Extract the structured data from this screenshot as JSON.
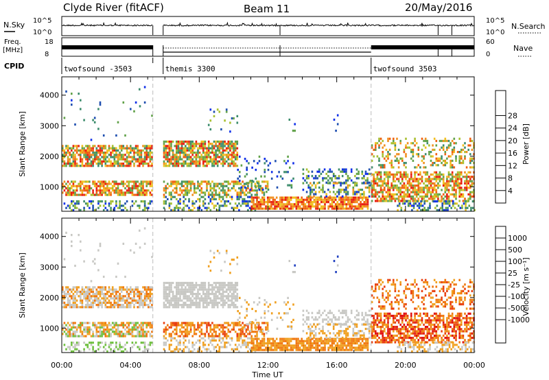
{
  "header": {
    "station": "Clyde River (fitACF)",
    "beam": "Beam 11",
    "date": "20/May/2016"
  },
  "top_panels": {
    "nsky_label": "N.Sky",
    "nsky_ticks": [
      "10^5",
      "10^0"
    ],
    "nsearch_label": "N.Search",
    "nsearch_ticks": [
      "10^5",
      "10^0"
    ],
    "freq_label_1": "Freq.",
    "freq_label_2": "[MHz]",
    "freq_ticks": [
      "18",
      "8"
    ],
    "nave_label": "Nave",
    "nave_ticks": [
      "60",
      "0"
    ],
    "cpid_label": "CPID",
    "cpid_segments": [
      {
        "label": "twofsound -3503",
        "start_h": 0.0,
        "end_h": 5.3
      },
      {
        "label": "themis 3300",
        "start_h": 5.9,
        "end_h": 18.0
      },
      {
        "label": "twofsound 3503",
        "start_h": 18.0,
        "end_h": 24.0
      }
    ]
  },
  "chart_data": [
    {
      "type": "heatmap",
      "title": "",
      "ylabel": "Slant Range [km]",
      "xlim_hours": [
        0,
        24
      ],
      "ylim": [
        200,
        4600
      ],
      "x_ticks": [
        "00:00",
        "04:00",
        "08:00",
        "12:00",
        "16:00",
        "20:00",
        "00:00"
      ],
      "y_ticks": [
        "1000",
        "2000",
        "3000",
        "4000"
      ],
      "colorbar": {
        "label": "Power [dB]",
        "ticks": [
          "4",
          "8",
          "12",
          "16",
          "20",
          "24",
          "28"
        ],
        "colors": [
          "#1030e8",
          "#2050b0",
          "#3c8c6c",
          "#62a24a",
          "#a8c030",
          "#f0c020",
          "#f09020",
          "#f06010",
          "#e82010"
        ]
      }
    },
    {
      "type": "heatmap",
      "title": "",
      "ylabel": "Slant Range [km]",
      "xlabel": "Time UT",
      "xlim_hours": [
        0,
        24
      ],
      "ylim": [
        200,
        4600
      ],
      "x_ticks": [
        "00:00",
        "04:00",
        "08:00",
        "12:00",
        "16:00",
        "20:00",
        "00:00"
      ],
      "y_ticks": [
        "1000",
        "2000",
        "3000",
        "4000"
      ],
      "colorbar": {
        "label": "Velocity [m s⁻¹]",
        "ticks": [
          "1000",
          "500",
          "100",
          "25",
          "-25",
          "-100",
          "-500",
          "-1000"
        ],
        "colors": [
          "#2040c0",
          "#3c6cc0",
          "#3c9050",
          "#70c040",
          "#c8c8c4",
          "#c8c8c4",
          "#f0a020",
          "#f07810",
          "#e84010",
          "#e01010"
        ]
      }
    }
  ]
}
